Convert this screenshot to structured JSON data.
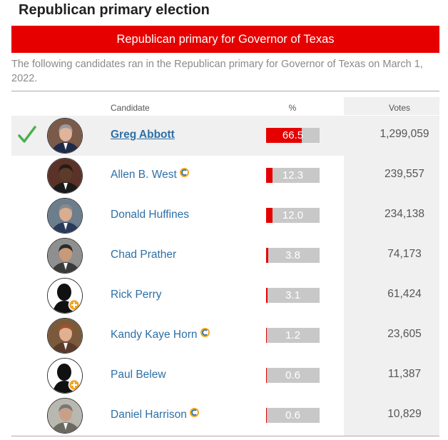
{
  "heading": "Republican primary election",
  "banner": "Republican primary for Governor of Texas",
  "description": "The following candidates ran in the Republican primary for Governor of Texas on March 1, 2022.",
  "columns": {
    "candidate": "Candidate",
    "percent": "%",
    "votes": "Votes"
  },
  "colors": {
    "accent": "#e60000",
    "link": "#2d6fa6",
    "check": "#4caf50",
    "incumbent_orange": "#f5a623",
    "incumbent_blue": "#2d6fa6"
  },
  "candidates": [
    {
      "name": "Greg Abbott",
      "percent": "66.5",
      "percent_value": 66.5,
      "votes": "1,299,059",
      "winner": true,
      "incumbent": false,
      "avatar": "photo-greg-abbott"
    },
    {
      "name": "Allen B. West",
      "percent": "12.3",
      "percent_value": 12.3,
      "votes": "239,557",
      "winner": false,
      "incumbent": true,
      "avatar": "photo-allen-west"
    },
    {
      "name": "Donald Huffines",
      "percent": "12.0",
      "percent_value": 12.0,
      "votes": "234,138",
      "winner": false,
      "incumbent": false,
      "avatar": "photo-donald-huffines"
    },
    {
      "name": "Chad Prather",
      "percent": "3.8",
      "percent_value": 3.8,
      "votes": "74,173",
      "winner": false,
      "incumbent": false,
      "avatar": "photo-chad-prather"
    },
    {
      "name": "Rick Perry",
      "percent": "3.1",
      "percent_value": 3.1,
      "votes": "61,424",
      "winner": false,
      "incumbent": false,
      "avatar": "placeholder-silhouette"
    },
    {
      "name": "Kandy Kaye Horn",
      "percent": "1.2",
      "percent_value": 1.2,
      "votes": "23,605",
      "winner": false,
      "incumbent": true,
      "avatar": "photo-kandy-kaye-horn"
    },
    {
      "name": "Paul Belew",
      "percent": "0.6",
      "percent_value": 0.6,
      "votes": "11,387",
      "winner": false,
      "incumbent": false,
      "avatar": "placeholder-silhouette"
    },
    {
      "name": "Daniel Harrison",
      "percent": "0.6",
      "percent_value": 0.6,
      "votes": "10,829",
      "winner": false,
      "incumbent": true,
      "avatar": "photo-daniel-harrison"
    }
  ]
}
